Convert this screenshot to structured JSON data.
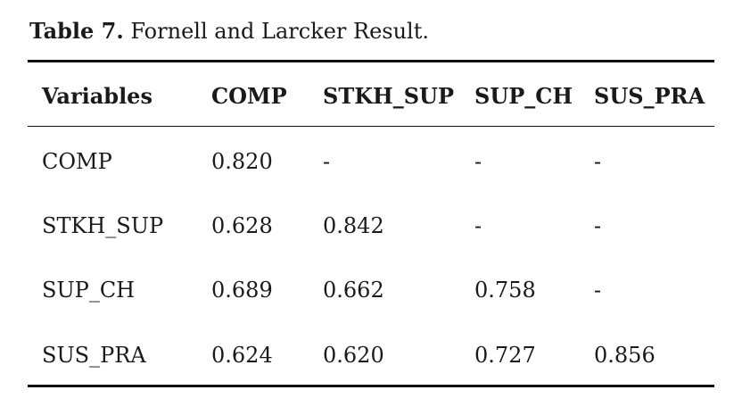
{
  "caption": {
    "label": "Table 7.",
    "text": "Fornell and Larcker Result."
  },
  "table": {
    "headers": [
      "Variables",
      "COMP",
      "STKH_SUP",
      "SUP_CH",
      "SUS_PRA"
    ],
    "rows": [
      [
        "COMP",
        "0.820",
        "-",
        "-",
        "-"
      ],
      [
        "STKH_SUP",
        "0.628",
        "0.842",
        "-",
        "-"
      ],
      [
        "SUP_CH",
        "0.689",
        "0.662",
        "0.758",
        "-"
      ],
      [
        "SUS_PRA",
        "0.624",
        "0.620",
        "0.727",
        "0.856"
      ]
    ]
  }
}
